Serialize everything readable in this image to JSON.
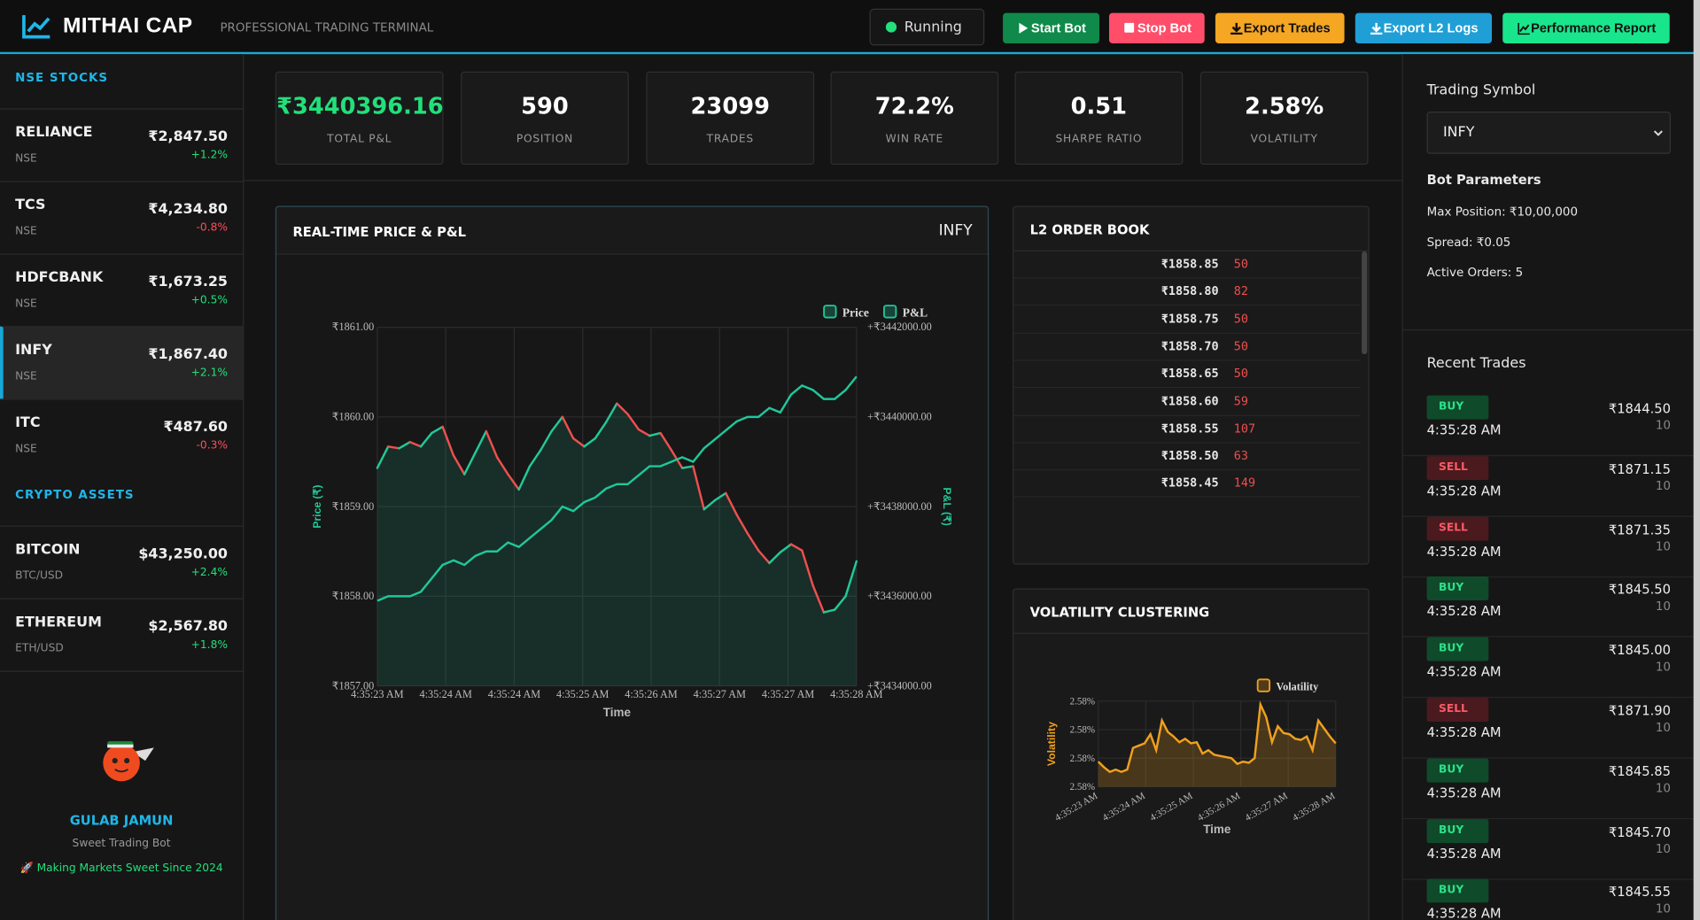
{
  "header": {
    "logo": "MITHAI CAP",
    "subtitle": "PROFESSIONAL TRADING TERMINAL",
    "status": "Running",
    "buttons": [
      "Start Bot",
      "Stop Bot",
      "Export Trades",
      "Export L2 Logs",
      "Performance Report"
    ]
  },
  "sidebar": {
    "sections": [
      {
        "title": "NSE STOCKS",
        "items": [
          {
            "symbol": "RELIANCE",
            "exchange": "NSE",
            "price": "₹2,847.50",
            "change": "+1.2%"
          },
          {
            "symbol": "TCS",
            "exchange": "NSE",
            "price": "₹4,234.80",
            "change": "-0.8%"
          },
          {
            "symbol": "HDFCBANK",
            "exchange": "NSE",
            "price": "₹1,673.25",
            "change": "+0.5%"
          },
          {
            "symbol": "INFY",
            "exchange": "NSE",
            "price": "₹1,867.40",
            "change": "+2.1%"
          },
          {
            "symbol": "ITC",
            "exchange": "NSE",
            "price": "₹487.60",
            "change": "-0.3%"
          }
        ]
      },
      {
        "title": "CRYPTO ASSETS",
        "items": [
          {
            "symbol": "BITCOIN",
            "exchange": "BTC/USD",
            "price": "$43,250.00",
            "change": "+2.4%"
          },
          {
            "symbol": "ETHEREUM",
            "exchange": "ETH/USD",
            "price": "$2,567.80",
            "change": "+1.8%"
          }
        ]
      }
    ],
    "active": "INFY",
    "bot": {
      "name": "GULAB JAMUN",
      "tagline": "Sweet Trading Bot",
      "motto": "🚀 Making Markets Sweet Since 2024"
    }
  },
  "metrics": [
    {
      "value": "₹3440396.16",
      "label": "TOTAL P&L"
    },
    {
      "value": "590",
      "label": "POSITION"
    },
    {
      "value": "23099",
      "label": "TRADES"
    },
    {
      "value": "72.2%",
      "label": "WIN RATE"
    },
    {
      "value": "0.51",
      "label": "SHARPE RATIO"
    },
    {
      "value": "2.58%",
      "label": "VOLATILITY"
    }
  ],
  "chart_data": [
    {
      "type": "line",
      "title": "REAL-TIME PRICE & P&L",
      "symbol": "INFY",
      "x_label": "Time",
      "y_label": "Price (₹)",
      "y2_label": "P&L (₹)",
      "x_tick_labels": [
        "4:35:23 AM",
        "4:35:24 AM",
        "4:35:24 AM",
        "4:35:25 AM",
        "4:35:26 AM",
        "4:35:27 AM",
        "4:35:27 AM",
        "4:35:28 AM"
      ],
      "ylim": [
        1857,
        1861
      ],
      "yticks": [
        {
          "value": 1857,
          "label": "₹1857.00"
        },
        {
          "value": 1858,
          "label": "₹1858.00"
        },
        {
          "value": 1859,
          "label": "₹1859.00"
        },
        {
          "value": 1860,
          "label": "₹1860.00"
        },
        {
          "value": 1861,
          "label": "₹1861.00"
        }
      ],
      "y2lim": [
        3434000,
        3442000
      ],
      "y2ticks": [
        {
          "value": 3434000,
          "label": "+₹3434000.00"
        },
        {
          "value": 3436000,
          "label": "+₹3436000.00"
        },
        {
          "value": 3438000,
          "label": "+₹3438000.00"
        },
        {
          "value": 3440000,
          "label": "+₹3440000.00"
        },
        {
          "value": 3442000,
          "label": "+₹3442000.00"
        }
      ],
      "grid": true,
      "legend": "top-right",
      "series": [
        {
          "name": "Price",
          "color": "#22c997",
          "rise_color": "#22c997",
          "fall_color": "#ee4f4f",
          "values": [
            1859.43,
            1859.67,
            1859.65,
            1859.72,
            1859.67,
            1859.82,
            1859.89,
            1859.57,
            1859.36,
            1859.6,
            1859.84,
            1859.55,
            1859.36,
            1859.19,
            1859.45,
            1859.63,
            1859.84,
            1860.0,
            1859.76,
            1859.67,
            1859.76,
            1859.94,
            1860.15,
            1860.03,
            1859.86,
            1859.79,
            1859.82,
            1859.63,
            1859.43,
            1859.45,
            1858.97,
            1859.07,
            1859.15,
            1858.91,
            1858.7,
            1858.51,
            1858.37,
            1858.49,
            1858.58,
            1858.51,
            1858.12,
            1857.82,
            1857.85,
            1858.0,
            1858.39
          ]
        },
        {
          "name": "P&L",
          "color": "#1fc79a",
          "axis": "y2",
          "values": [
            3435900,
            3436000,
            3436000,
            3436000,
            3436100,
            3436400,
            3436700,
            3436800,
            3436700,
            3436900,
            3437000,
            3437000,
            3437200,
            3437100,
            3437300,
            3437500,
            3437700,
            3438000,
            3437900,
            3438100,
            3438200,
            3438400,
            3438500,
            3438500,
            3438700,
            3438900,
            3438900,
            3439000,
            3439100,
            3439000,
            3439300,
            3439500,
            3439700,
            3439900,
            3440000,
            3440000,
            3440200,
            3440100,
            3440500,
            3440700,
            3440600,
            3440400,
            3440400,
            3440600,
            3440900
          ]
        }
      ]
    },
    {
      "type": "area",
      "title": "VOLATILITY CLUSTERING",
      "x_label": "Time",
      "y_label": "Volatility",
      "x_tick_labels": [
        "4:35:23 AM",
        "4:35:24 AM",
        "4:35:25 AM",
        "4:35:26 AM",
        "4:35:27 AM",
        "4:35:28 AM"
      ],
      "ylim": [
        2.575,
        2.5825
      ],
      "yticks": [
        {
          "value": 2.575,
          "label": "2.58%"
        },
        {
          "value": 2.5775,
          "label": "2.58%"
        },
        {
          "value": 2.58,
          "label": "2.58%"
        },
        {
          "value": 2.5825,
          "label": "2.58%"
        }
      ],
      "grid": true,
      "legend": "top-right",
      "series": [
        {
          "name": "Volatility",
          "color": "#f0a01e",
          "values": [
            2.5772,
            2.5767,
            2.5763,
            2.5765,
            2.5763,
            2.5765,
            2.5784,
            2.5786,
            2.5788,
            2.5796,
            2.5782,
            2.5808,
            2.5798,
            2.5794,
            2.5789,
            2.5792,
            2.5788,
            2.5789,
            2.5779,
            2.5782,
            2.5778,
            2.5777,
            2.5776,
            2.5775,
            2.577,
            2.5772,
            2.5771,
            2.5775,
            2.5822,
            2.5811,
            2.5789,
            2.5803,
            2.5797,
            2.5796,
            2.5792,
            2.5791,
            2.5794,
            2.5782,
            2.5808,
            2.5801,
            2.5794,
            2.5788
          ]
        }
      ]
    }
  ],
  "order_book": {
    "title": "L2 ORDER BOOK",
    "rows": [
      {
        "price": "₹1858.85",
        "size": 50
      },
      {
        "price": "₹1858.80",
        "size": 82
      },
      {
        "price": "₹1858.75",
        "size": 50
      },
      {
        "price": "₹1858.70",
        "size": 50
      },
      {
        "price": "₹1858.65",
        "size": 50
      },
      {
        "price": "₹1858.60",
        "size": 59
      },
      {
        "price": "₹1858.55",
        "size": 107
      },
      {
        "price": "₹1858.50",
        "size": 63
      },
      {
        "price": "₹1858.45",
        "size": 149
      }
    ]
  },
  "controls": {
    "symbol_label": "Trading Symbol",
    "symbol": "INFY",
    "params_title": "Bot Parameters",
    "params": [
      "Max Position: ₹10,00,000",
      "Spread: ₹0.05",
      "Active Orders: 5"
    ]
  },
  "recent_trades": {
    "title": "Recent Trades",
    "trades": [
      {
        "side": "BUY",
        "time": "4:35:28 AM",
        "price": "₹1844.50",
        "qty": 10
      },
      {
        "side": "SELL",
        "time": "4:35:28 AM",
        "price": "₹1871.15",
        "qty": 10
      },
      {
        "side": "SELL",
        "time": "4:35:28 AM",
        "price": "₹1871.35",
        "qty": 10
      },
      {
        "side": "BUY",
        "time": "4:35:28 AM",
        "price": "₹1845.50",
        "qty": 10
      },
      {
        "side": "BUY",
        "time": "4:35:28 AM",
        "price": "₹1845.00",
        "qty": 10
      },
      {
        "side": "SELL",
        "time": "4:35:28 AM",
        "price": "₹1871.90",
        "qty": 10
      },
      {
        "side": "BUY",
        "time": "4:35:28 AM",
        "price": "₹1845.85",
        "qty": 10
      },
      {
        "side": "BUY",
        "time": "4:35:28 AM",
        "price": "₹1845.70",
        "qty": 10
      },
      {
        "side": "BUY",
        "time": "4:35:28 AM",
        "price": "₹1845.55",
        "qty": 10
      }
    ]
  }
}
